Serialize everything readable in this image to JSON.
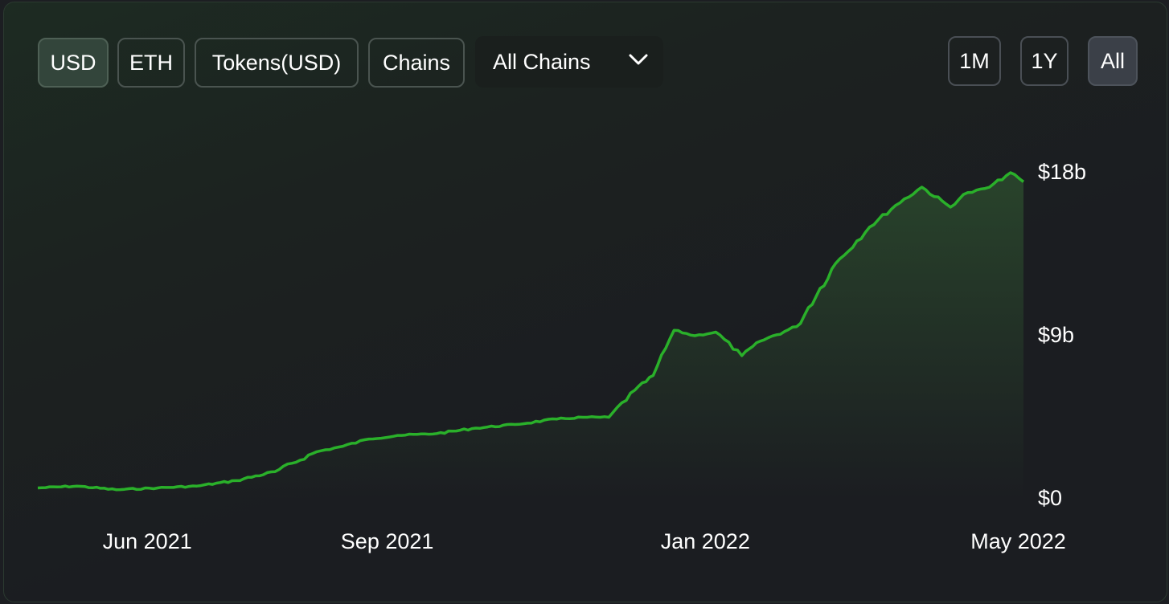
{
  "toolbar": {
    "denomination_buttons": [
      {
        "label": "USD",
        "active": true
      },
      {
        "label": "ETH",
        "active": false
      },
      {
        "label": "Tokens(USD)",
        "active": false
      },
      {
        "label": "Chains",
        "active": false
      }
    ],
    "chain_select": {
      "selected": "All Chains"
    },
    "range_buttons": [
      {
        "label": "1M",
        "active": false
      },
      {
        "label": "1Y",
        "active": false
      },
      {
        "label": "All",
        "active": true
      }
    ]
  },
  "colors": {
    "line": "#2ab02a",
    "area_top": "#2b4a2d",
    "active_button": "#33453b",
    "active_range_button": "#3b4048"
  },
  "chart_data": {
    "type": "area",
    "title": "",
    "xlabel": "",
    "ylabel": "",
    "x_ticks": [
      "Jun 2021",
      "Sep 2021",
      "Jan 2022",
      "May 2022"
    ],
    "y_ticks": [
      "$0",
      "$9b",
      "$18b"
    ],
    "ylim": [
      0,
      18
    ],
    "xlim": [
      "2021-04-20",
      "2022-05-03"
    ],
    "grid": false,
    "series": [
      {
        "x": [
          "2021-04-20",
          "2021-05-05",
          "2021-05-20",
          "2021-06-05",
          "2021-06-20",
          "2021-07-05",
          "2021-07-20",
          "2021-08-05",
          "2021-08-15",
          "2021-08-25",
          "2021-09-05",
          "2021-09-20",
          "2021-10-05",
          "2021-10-20",
          "2021-11-05",
          "2021-11-15",
          "2021-11-25",
          "2021-12-05",
          "2021-12-12",
          "2021-12-20",
          "2021-12-28",
          "2022-01-05",
          "2022-01-15",
          "2022-01-22",
          "2022-02-05",
          "2022-02-20",
          "2022-03-05",
          "2022-03-15",
          "2022-03-25",
          "2022-04-05",
          "2022-04-10",
          "2022-04-20",
          "2022-04-28",
          "2022-05-03"
        ],
        "values": [
          0.6,
          0.7,
          0.5,
          0.6,
          0.7,
          1.0,
          1.5,
          2.6,
          2.9,
          3.3,
          3.5,
          3.6,
          3.9,
          4.1,
          4.4,
          4.5,
          4.5,
          6.0,
          6.8,
          9.3,
          9.0,
          9.2,
          7.9,
          8.7,
          9.5,
          13.0,
          15.0,
          16.2,
          17.2,
          16.1,
          16.8,
          17.2,
          18.0,
          17.5
        ]
      }
    ]
  }
}
